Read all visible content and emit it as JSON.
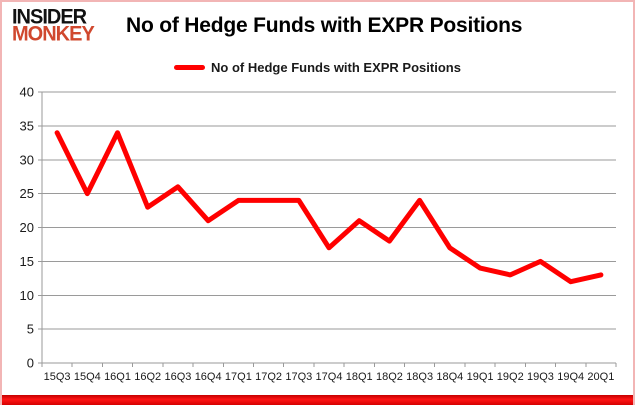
{
  "logo": {
    "line1": "INSIDER",
    "line2": "MONKEY"
  },
  "title": "No of Hedge Funds with EXPR Positions",
  "legend": {
    "label": "No of Hedge Funds with EXPR Positions"
  },
  "chart_data": {
    "type": "line",
    "title": "No of Hedge Funds with EXPR Positions",
    "categories": [
      "15Q3",
      "15Q4",
      "16Q1",
      "16Q2",
      "16Q3",
      "16Q4",
      "17Q1",
      "17Q2",
      "17Q3",
      "17Q4",
      "18Q1",
      "18Q2",
      "18Q3",
      "18Q4",
      "19Q1",
      "19Q2",
      "19Q3",
      "19Q4",
      "20Q1"
    ],
    "series": [
      {
        "name": "No of Hedge Funds with EXPR Positions",
        "values": [
          34,
          25,
          34,
          23,
          26,
          21,
          24,
          24,
          24,
          17,
          21,
          18,
          24,
          17,
          14,
          13,
          15,
          12,
          13
        ]
      }
    ],
    "xlabel": "",
    "ylabel": "",
    "ylim": [
      0,
      40
    ],
    "ytick_step": 5,
    "grid": "horizontal",
    "legend_position": "top-center"
  },
  "colors": {
    "line": "#ff0000",
    "grid": "#9a9a9a",
    "axis": "#9a9a9a",
    "tick_text": "#1a1a1a",
    "logo_black": "#111111",
    "logo_red": "#d0482e",
    "frame_pink": "#f2b5b5",
    "bottom_bar": "#e60000"
  }
}
